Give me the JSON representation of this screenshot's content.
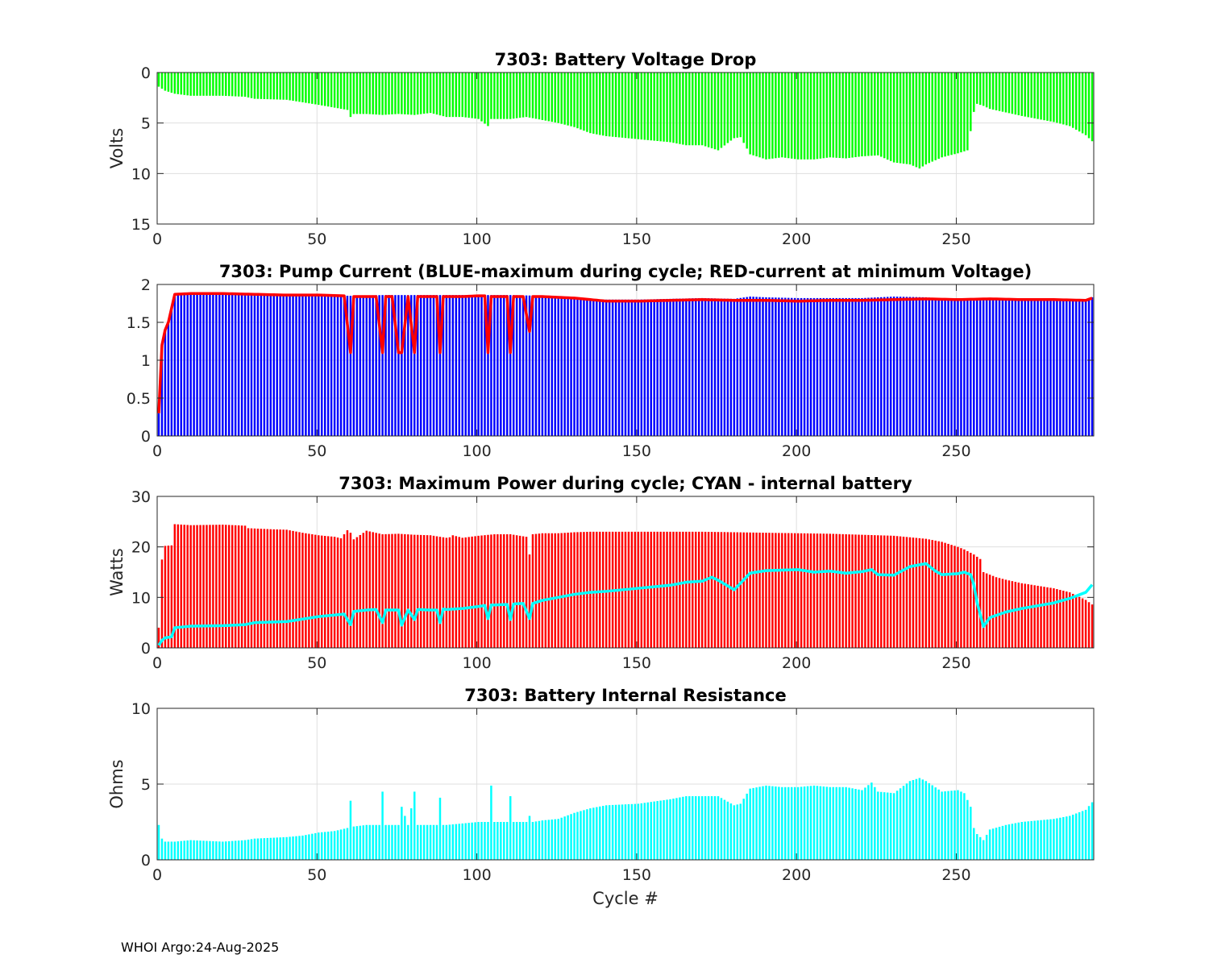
{
  "footer": "WHOI Argo:24-Aug-2025",
  "chart_data": [
    {
      "type": "bar",
      "title": "7303: Battery Voltage Drop",
      "ylabel": "Volts",
      "xlabel": "",
      "xlim": [
        0,
        293
      ],
      "ylim": [
        0,
        15
      ],
      "y_reversed": true,
      "xticks": [
        0,
        50,
        100,
        150,
        200,
        250
      ],
      "yticks": [
        0,
        5,
        10,
        15
      ],
      "grid": true,
      "bar_color": "#00ff00",
      "series": [
        {
          "x": [
            0,
            1,
            2,
            5,
            10,
            20,
            27,
            30,
            40,
            50,
            59,
            60,
            61,
            65,
            70,
            75,
            80,
            85,
            90,
            95,
            100,
            103,
            104,
            105,
            110,
            115,
            120,
            125,
            130,
            135,
            140,
            150,
            160,
            165,
            170,
            175,
            180,
            182,
            185,
            190,
            195,
            200,
            205,
            210,
            215,
            220,
            225,
            230,
            235,
            238,
            240,
            245,
            250,
            253,
            255,
            256,
            258,
            260,
            270,
            280,
            285,
            290,
            292
          ],
          "values": [
            1.4,
            1.6,
            1.8,
            2.1,
            2.3,
            2.3,
            2.4,
            2.6,
            2.7,
            3.2,
            3.7,
            4.4,
            4.1,
            4.1,
            4.2,
            4.1,
            4.2,
            4.0,
            4.4,
            4.4,
            4.6,
            5.3,
            4.6,
            4.6,
            4.6,
            4.4,
            4.7,
            5.0,
            5.4,
            6.0,
            6.3,
            6.6,
            6.9,
            7.2,
            7.2,
            7.7,
            6.5,
            6.4,
            8.1,
            8.6,
            8.4,
            8.6,
            8.6,
            8.4,
            8.5,
            8.3,
            8.2,
            8.9,
            9.1,
            9.5,
            9.1,
            8.4,
            8.0,
            7.7,
            3.9,
            3.1,
            3.3,
            3.6,
            4.3,
            4.9,
            5.3,
            6.2,
            6.8
          ]
        }
      ]
    },
    {
      "type": "bar",
      "title": "7303: Pump Current (BLUE-maximum during cycle; RED-current at minimum Voltage)",
      "ylabel": "",
      "xlabel": "",
      "xlim": [
        0,
        293
      ],
      "ylim": [
        0,
        2
      ],
      "xticks": [
        0,
        50,
        100,
        150,
        200,
        250
      ],
      "yticks": [
        0,
        0.5,
        1,
        1.5,
        2
      ],
      "grid": true,
      "series": [
        {
          "name": "maximum during cycle",
          "color": "#0000ff",
          "x": [
            0,
            1,
            2,
            3,
            5,
            10,
            20,
            30,
            40,
            50,
            60,
            70,
            80,
            90,
            100,
            110,
            120,
            125,
            130,
            135,
            140,
            150,
            160,
            170,
            180,
            185,
            190,
            200,
            210,
            220,
            230,
            240,
            250,
            260,
            270,
            280,
            290,
            292
          ],
          "values": [
            0.3,
            1.2,
            1.4,
            1.5,
            1.87,
            1.88,
            1.88,
            1.87,
            1.87,
            1.86,
            1.85,
            1.86,
            1.86,
            1.86,
            1.86,
            1.86,
            1.85,
            1.83,
            1.82,
            1.8,
            1.8,
            1.8,
            1.81,
            1.82,
            1.81,
            1.84,
            1.83,
            1.82,
            1.82,
            1.82,
            1.84,
            1.83,
            1.8,
            1.82,
            1.81,
            1.8,
            1.8,
            1.83
          ]
        },
        {
          "name": "current at minimum Voltage",
          "color": "#ff0000",
          "x": [
            0,
            1,
            2,
            3,
            5,
            10,
            20,
            30,
            40,
            50,
            58,
            60,
            61,
            65,
            68,
            70,
            71,
            73,
            75,
            76,
            78,
            80,
            81,
            85,
            87,
            88,
            89,
            95,
            100,
            102,
            103,
            104,
            105,
            109,
            110,
            111,
            114,
            116,
            117,
            120,
            130,
            140,
            150,
            160,
            170,
            180,
            190,
            200,
            210,
            220,
            230,
            240,
            250,
            260,
            270,
            280,
            290,
            292
          ],
          "values": [
            0.3,
            1.2,
            1.4,
            1.5,
            1.87,
            1.88,
            1.88,
            1.87,
            1.86,
            1.86,
            1.85,
            1.1,
            1.84,
            1.84,
            1.84,
            1.1,
            1.84,
            1.84,
            1.1,
            1.1,
            1.84,
            1.1,
            1.84,
            1.84,
            1.84,
            1.1,
            1.84,
            1.84,
            1.85,
            1.85,
            1.1,
            1.84,
            1.84,
            1.84,
            1.1,
            1.84,
            1.84,
            1.38,
            1.84,
            1.84,
            1.82,
            1.78,
            1.78,
            1.79,
            1.8,
            1.79,
            1.79,
            1.78,
            1.79,
            1.79,
            1.8,
            1.81,
            1.8,
            1.81,
            1.8,
            1.8,
            1.79,
            1.82
          ]
        }
      ]
    },
    {
      "type": "bar",
      "title": "7303: Maximum Power during cycle; CYAN - internal battery",
      "ylabel": "Watts",
      "xlabel": "",
      "xlim": [
        0,
        293
      ],
      "ylim": [
        0,
        30
      ],
      "xticks": [
        0,
        50,
        100,
        150,
        200,
        250
      ],
      "yticks": [
        0,
        10,
        20,
        30
      ],
      "grid": true,
      "series": [
        {
          "name": "Maximum Power during cycle",
          "color": "#ff0000",
          "x": [
            0,
            1,
            2,
            4,
            5,
            10,
            20,
            27,
            28,
            35,
            40,
            45,
            50,
            55,
            57,
            59,
            60,
            61,
            65,
            70,
            75,
            80,
            85,
            90,
            91,
            92,
            95,
            100,
            105,
            110,
            115,
            116,
            117,
            120,
            125,
            130,
            135,
            140,
            150,
            160,
            170,
            180,
            190,
            200,
            210,
            220,
            230,
            240,
            245,
            250,
            252,
            255,
            257,
            258,
            260,
            262,
            265,
            270,
            280,
            285,
            290,
            292
          ],
          "values": [
            4,
            17.5,
            20.2,
            20.3,
            24.5,
            24.3,
            24.4,
            24.2,
            23.7,
            23.5,
            23.4,
            22.8,
            22.3,
            22,
            21.7,
            23.3,
            22.8,
            21.5,
            23.2,
            22.5,
            22.6,
            22.4,
            22.3,
            21.8,
            21.9,
            22.3,
            21.8,
            22.2,
            22.5,
            22.5,
            22,
            18.5,
            22.5,
            22.7,
            22.7,
            22.9,
            23,
            23,
            23,
            23,
            23,
            22.9,
            22.8,
            22.7,
            22.6,
            22.4,
            22.2,
            21.6,
            21,
            20,
            19.5,
            18.5,
            17.6,
            15,
            14.5,
            14,
            13.5,
            12.8,
            11.8,
            11,
            9.5,
            8.6
          ]
        },
        {
          "name": "internal battery",
          "color": "#00ffff",
          "x": [
            0,
            1,
            2,
            4,
            5,
            10,
            20,
            27,
            30,
            35,
            40,
            45,
            50,
            55,
            58,
            60,
            61,
            65,
            68,
            70,
            71,
            75,
            76,
            78,
            80,
            81,
            85,
            87,
            88,
            89,
            90,
            95,
            100,
            102,
            103,
            104,
            105,
            109,
            110,
            111,
            114,
            116,
            117,
            120,
            125,
            130,
            135,
            140,
            145,
            150,
            155,
            160,
            165,
            170,
            173,
            175,
            180,
            185,
            190,
            195,
            200,
            205,
            210,
            215,
            220,
            223,
            225,
            230,
            235,
            240,
            243,
            245,
            250,
            252,
            254,
            255,
            256,
            258,
            260,
            265,
            270,
            280,
            285,
            290,
            292
          ],
          "values": [
            0.5,
            1.5,
            2,
            2.2,
            4,
            4.3,
            4.4,
            4.6,
            5,
            5.1,
            5.2,
            5.7,
            6.2,
            6.5,
            6.7,
            4.6,
            7.2,
            7.5,
            7.6,
            5,
            7.5,
            7.5,
            4.5,
            7.5,
            5.6,
            7.6,
            7.5,
            7.5,
            5,
            7.7,
            7.6,
            7.8,
            8.2,
            8.4,
            5.8,
            8.5,
            8.5,
            8.6,
            5.6,
            8.7,
            8.8,
            5.8,
            8.8,
            9.4,
            10,
            10.6,
            11,
            11.2,
            11.5,
            11.8,
            12.1,
            12.4,
            13,
            13.2,
            14,
            13.4,
            11.5,
            14.8,
            15.3,
            15.4,
            15.5,
            15,
            15.2,
            14.8,
            15.1,
            15.5,
            14.5,
            14.4,
            16.1,
            16.7,
            15.2,
            14.5,
            14.7,
            15,
            14.5,
            12.5,
            9,
            4.2,
            6,
            7.1,
            7.8,
            8.9,
            9.8,
            11,
            12.5
          ]
        }
      ]
    },
    {
      "type": "bar",
      "title": "7303: Battery Internal Resistance",
      "ylabel": "Ohms",
      "xlabel": "Cycle #",
      "xlim": [
        0,
        293
      ],
      "ylim": [
        0,
        10
      ],
      "xticks": [
        0,
        50,
        100,
        150,
        200,
        250
      ],
      "yticks": [
        0,
        5,
        10
      ],
      "grid": true,
      "bar_color": "#00ffff",
      "series": [
        {
          "x": [
            0,
            1,
            2,
            5,
            10,
            20,
            27,
            30,
            40,
            45,
            50,
            55,
            59,
            60,
            61,
            65,
            69,
            70,
            71,
            75,
            76,
            78,
            80,
            81,
            87,
            88,
            89,
            90,
            95,
            100,
            103,
            104,
            105,
            109,
            110,
            111,
            115,
            116,
            117,
            120,
            125,
            130,
            135,
            140,
            150,
            160,
            165,
            170,
            175,
            180,
            182,
            185,
            190,
            195,
            200,
            205,
            210,
            215,
            220,
            223,
            225,
            230,
            235,
            238,
            240,
            245,
            250,
            252,
            254,
            255,
            256,
            258,
            260,
            265,
            270,
            280,
            285,
            290,
            292
          ],
          "values": [
            2.3,
            1.4,
            1.2,
            1.2,
            1.3,
            1.2,
            1.3,
            1.4,
            1.5,
            1.6,
            1.8,
            1.9,
            2.1,
            3.9,
            2.2,
            2.3,
            2.3,
            4.5,
            2.3,
            2.3,
            3.5,
            2.3,
            4.5,
            2.3,
            2.3,
            4.1,
            2.3,
            2.3,
            2.4,
            2.5,
            2.5,
            4.9,
            2.5,
            2.5,
            4.2,
            2.5,
            2.5,
            2.9,
            2.5,
            2.6,
            2.7,
            3.1,
            3.4,
            3.6,
            3.7,
            4,
            4.2,
            4.2,
            4.2,
            3.6,
            3.7,
            4.7,
            4.9,
            4.8,
            4.8,
            4.9,
            4.8,
            4.8,
            4.6,
            5.1,
            4.5,
            4.4,
            5.2,
            5.4,
            5.2,
            4.5,
            4.6,
            4.4,
            3.5,
            2.1,
            1.7,
            1.3,
            2,
            2.3,
            2.5,
            2.7,
            2.9,
            3.3,
            3.8
          ]
        }
      ]
    }
  ]
}
